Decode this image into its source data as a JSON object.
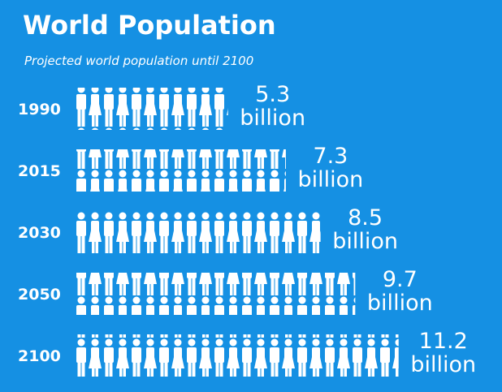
{
  "chart_data": {
    "type": "bar",
    "title": "World Population",
    "subtitle": "Projected world population until 2100",
    "categories": [
      "1990",
      "2015",
      "2030",
      "2050",
      "2100"
    ],
    "values": [
      5.3,
      7.3,
      8.5,
      9.7,
      11.2
    ],
    "value_labels": [
      "5.3 billion",
      "7.3 billion",
      "8.5 billion",
      "9.7 billion",
      "11.2 billion"
    ],
    "color": "#ffffff"
  }
}
